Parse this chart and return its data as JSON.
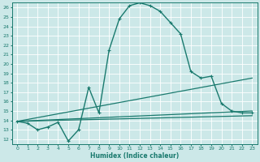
{
  "xlabel": "Humidex (Indice chaleur)",
  "bg_color": "#cce8e8",
  "line_color": "#1a7a6e",
  "grid_color": "#b8d8d8",
  "xlim": [
    -0.5,
    23.5
  ],
  "ylim": [
    11.5,
    26.5
  ],
  "xticks": [
    0,
    1,
    2,
    3,
    4,
    5,
    6,
    7,
    8,
    9,
    10,
    11,
    12,
    13,
    14,
    15,
    16,
    17,
    18,
    19,
    20,
    21,
    22,
    23
  ],
  "yticks": [
    12,
    13,
    14,
    15,
    16,
    17,
    18,
    19,
    20,
    21,
    22,
    23,
    24,
    25,
    26
  ],
  "series": [
    {
      "x": [
        0,
        1,
        2,
        3,
        4,
        5,
        6,
        7,
        8,
        9,
        10,
        11,
        12,
        13,
        14,
        15,
        16,
        17,
        18,
        19,
        20,
        21,
        22,
        23
      ],
      "y": [
        13.9,
        13.7,
        13.0,
        13.3,
        13.8,
        11.8,
        13.0,
        17.5,
        14.8,
        21.5,
        24.8,
        26.2,
        26.5,
        26.2,
        25.6,
        24.4,
        23.2,
        19.2,
        18.5,
        18.7,
        15.8,
        15.0,
        14.8,
        14.8
      ],
      "marker": "+",
      "lw": 1.0
    },
    {
      "x": [
        0,
        23
      ],
      "y": [
        13.9,
        18.5
      ],
      "marker": null,
      "lw": 0.9
    },
    {
      "x": [
        0,
        23
      ],
      "y": [
        13.9,
        15.0
      ],
      "marker": null,
      "lw": 0.9
    },
    {
      "x": [
        0,
        23
      ],
      "y": [
        13.9,
        14.5
      ],
      "marker": null,
      "lw": 0.9
    }
  ]
}
